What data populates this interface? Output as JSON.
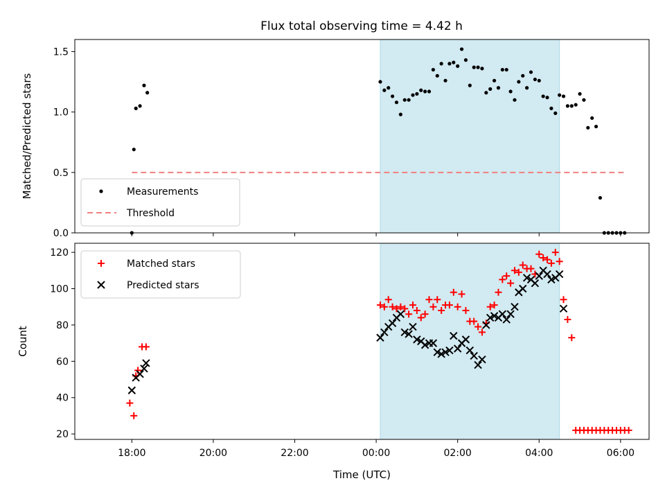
{
  "figure": {
    "title": "Flux total observing time = 4.42 h",
    "shaded_window": {
      "start_h": 24.1,
      "end_h": 28.5,
      "color": "#add8e6"
    }
  },
  "chart_data": [
    {
      "type": "scatter",
      "ylabel": "Matched/Predicted stars",
      "xlim": [
        16.6,
        30.7
      ],
      "ylim": [
        0,
        1.6
      ],
      "yticks": [
        0.0,
        0.5,
        1.0,
        1.5
      ],
      "ytick_labels": [
        "0.0",
        "0.5",
        "1.0",
        "1.5"
      ],
      "legend": {
        "position": "lower-left",
        "entries": [
          "Measurements",
          "Threshold"
        ]
      },
      "series": [
        {
          "name": "Measurements",
          "marker": "dot",
          "color": "#000000",
          "x": [
            18.0,
            18.05,
            18.1,
            18.2,
            18.3,
            18.38,
            24.1,
            24.2,
            24.3,
            24.4,
            24.5,
            24.6,
            24.7,
            24.8,
            24.9,
            25.0,
            25.1,
            25.2,
            25.3,
            25.4,
            25.5,
            25.6,
            25.7,
            25.8,
            25.9,
            26.0,
            26.1,
            26.2,
            26.3,
            26.4,
            26.5,
            26.6,
            26.7,
            26.8,
            26.9,
            27.0,
            27.1,
            27.2,
            27.3,
            27.4,
            27.5,
            27.6,
            27.7,
            27.8,
            27.9,
            28.0,
            28.1,
            28.2,
            28.3,
            28.4,
            28.5,
            28.6,
            28.7,
            28.8,
            28.9,
            29.0,
            29.1,
            29.2,
            29.3,
            29.4,
            29.5,
            29.6,
            29.7,
            29.8,
            29.9,
            30.0,
            30.1
          ],
          "y": [
            0.0,
            0.69,
            1.03,
            1.05,
            1.22,
            1.16,
            1.25,
            1.18,
            1.2,
            1.13,
            1.08,
            0.98,
            1.1,
            1.1,
            1.14,
            1.15,
            1.18,
            1.17,
            1.17,
            1.35,
            1.3,
            1.4,
            1.26,
            1.4,
            1.41,
            1.38,
            1.52,
            1.43,
            1.22,
            1.37,
            1.37,
            1.36,
            1.16,
            1.19,
            1.26,
            1.2,
            1.35,
            1.35,
            1.17,
            1.1,
            1.25,
            1.3,
            1.2,
            1.33,
            1.27,
            1.26,
            1.13,
            1.12,
            1.03,
            0.99,
            1.14,
            1.13,
            1.05,
            1.05,
            1.06,
            1.15,
            1.1,
            0.87,
            0.95,
            0.88,
            0.29,
            0.0,
            0.0,
            0.0,
            0.0,
            0.0,
            0.0
          ]
        },
        {
          "name": "Threshold",
          "marker": "dashed-line",
          "color": "#f08080",
          "x": [
            18.0,
            30.1
          ],
          "y": [
            0.5,
            0.5
          ]
        }
      ]
    },
    {
      "type": "scatter",
      "xlabel": "Time (UTC)",
      "ylabel": "Count",
      "xlim": [
        16.6,
        30.7
      ],
      "ylim": [
        17,
        125
      ],
      "xticks": [
        18,
        20,
        22,
        24,
        26,
        28,
        30
      ],
      "xtick_labels": [
        "18:00",
        "20:00",
        "22:00",
        "00:00",
        "02:00",
        "04:00",
        "06:00"
      ],
      "yticks": [
        20,
        40,
        60,
        80,
        100,
        120
      ],
      "ytick_labels": [
        "20",
        "40",
        "60",
        "80",
        "100",
        "120"
      ],
      "legend": {
        "position": "upper-left",
        "entries": [
          "Matched stars",
          "Predicted stars"
        ]
      },
      "series": [
        {
          "name": "Matched stars",
          "marker": "plus",
          "color": "#ff0000",
          "x": [
            17.95,
            18.05,
            18.1,
            18.15,
            18.25,
            18.35,
            24.1,
            24.2,
            24.3,
            24.4,
            24.5,
            24.6,
            24.7,
            24.8,
            24.9,
            25.0,
            25.1,
            25.2,
            25.3,
            25.4,
            25.5,
            25.6,
            25.7,
            25.8,
            25.9,
            26.0,
            26.1,
            26.2,
            26.3,
            26.4,
            26.5,
            26.6,
            26.7,
            26.8,
            26.9,
            27.0,
            27.1,
            27.2,
            27.3,
            27.4,
            27.5,
            27.6,
            27.7,
            27.8,
            27.9,
            28.0,
            28.1,
            28.2,
            28.3,
            28.4,
            28.5,
            28.6,
            28.7,
            28.8,
            28.9,
            29.0,
            29.1,
            29.2,
            29.3,
            29.4,
            29.5,
            29.6,
            29.7,
            29.8,
            29.9,
            30.0,
            30.1,
            30.2
          ],
          "y": [
            37,
            30,
            52,
            55,
            68,
            68,
            91,
            90,
            94,
            90,
            89,
            90,
            89,
            86,
            91,
            88,
            84,
            86,
            94,
            90,
            94,
            88,
            91,
            91,
            98,
            90,
            97,
            88,
            82,
            82,
            79,
            76,
            81,
            90,
            91,
            98,
            105,
            107,
            103,
            110,
            109,
            113,
            111,
            111,
            108,
            119,
            117,
            116,
            114,
            120,
            115,
            94,
            83,
            73,
            22,
            22,
            22,
            22,
            22,
            22,
            22,
            22,
            22,
            22,
            22,
            22,
            22,
            22
          ]
        },
        {
          "name": "Predicted stars",
          "marker": "x",
          "color": "#000000",
          "x": [
            18.0,
            18.1,
            18.2,
            18.3,
            18.35,
            24.1,
            24.2,
            24.3,
            24.4,
            24.5,
            24.6,
            24.7,
            24.8,
            24.9,
            25.0,
            25.1,
            25.2,
            25.3,
            25.4,
            25.5,
            25.6,
            25.7,
            25.8,
            25.9,
            26.0,
            26.1,
            26.2,
            26.3,
            26.4,
            26.5,
            26.6,
            26.7,
            26.8,
            26.9,
            27.0,
            27.1,
            27.2,
            27.3,
            27.4,
            27.5,
            27.6,
            27.7,
            27.8,
            27.9,
            28.0,
            28.1,
            28.2,
            28.3,
            28.4,
            28.5,
            28.6
          ],
          "y": [
            44,
            51,
            53,
            56,
            59,
            73,
            76,
            79,
            81,
            84,
            86,
            76,
            75,
            79,
            72,
            71,
            69,
            70,
            70,
            65,
            64,
            65,
            66,
            74,
            67,
            70,
            72,
            66,
            63,
            58,
            61,
            80,
            84,
            85,
            84,
            86,
            83,
            86,
            90,
            98,
            100,
            106,
            105,
            103,
            107,
            110,
            108,
            105,
            106,
            108,
            89
          ]
        }
      ]
    }
  ]
}
